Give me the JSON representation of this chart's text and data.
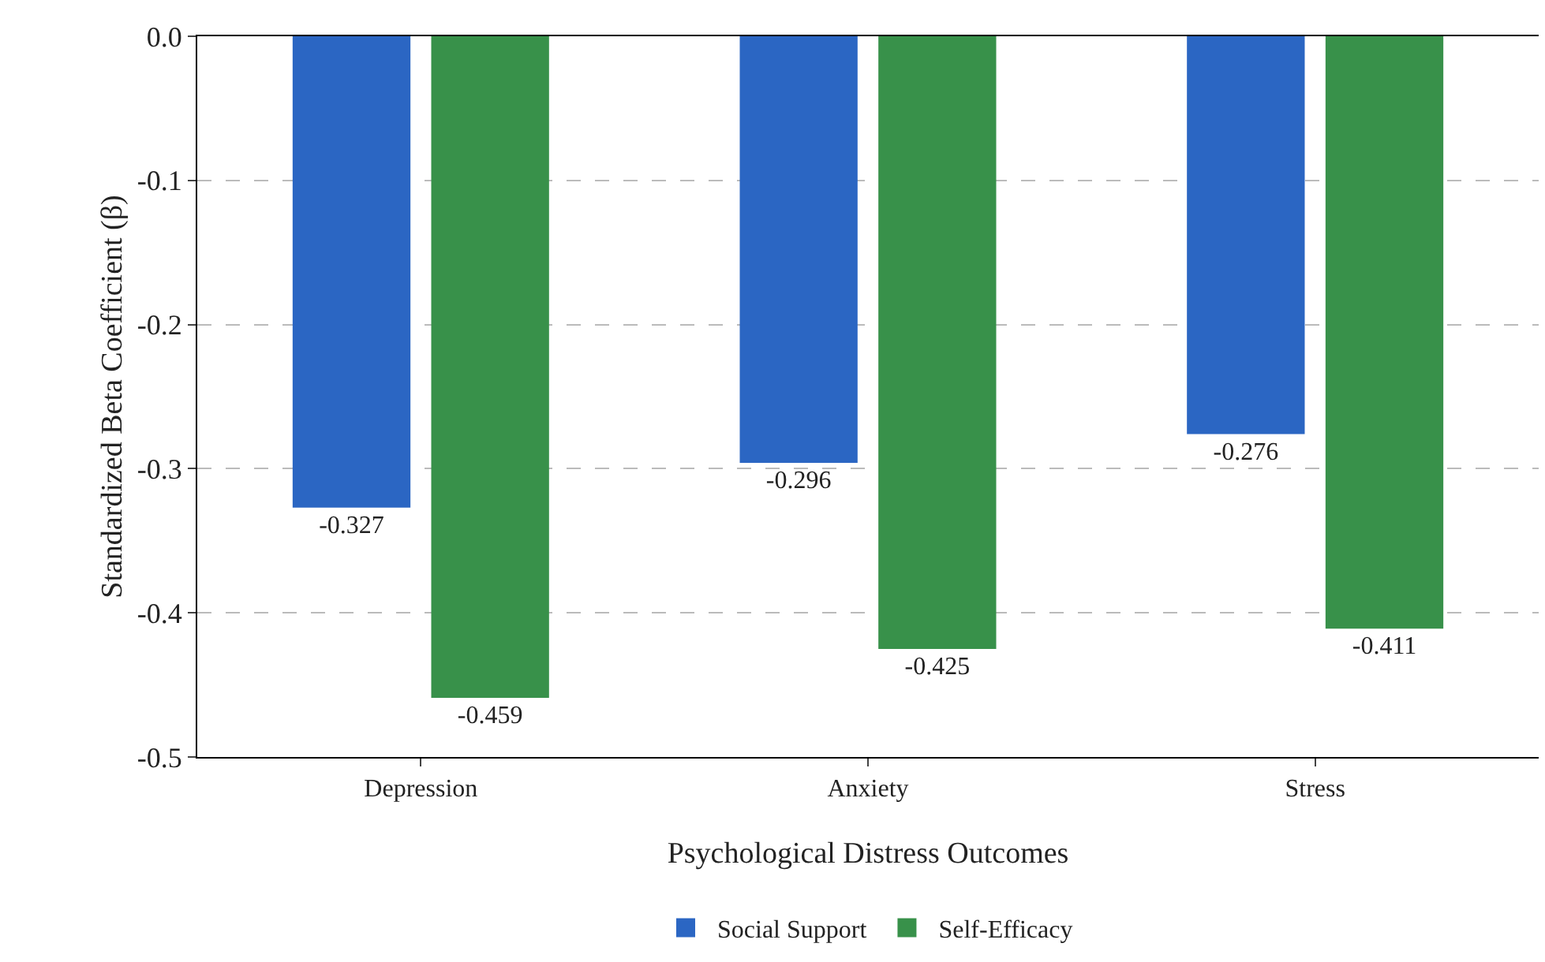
{
  "chart_data": {
    "type": "bar",
    "xlabel": "Psychological Distress Outcomes",
    "ylabel": "Standardized Beta Coefficient (β)",
    "categories": [
      "Depression",
      "Anxiety",
      "Stress"
    ],
    "series": [
      {
        "name": "Social Support",
        "color": "#2b66c3",
        "values": [
          -0.327,
          -0.296,
          -0.276
        ]
      },
      {
        "name": "Self-Efficacy",
        "color": "#38914a",
        "values": [
          -0.459,
          -0.425,
          -0.411
        ]
      }
    ],
    "ylim": [
      -0.5,
      0.0
    ],
    "yticks": [
      {
        "value": -0.5,
        "label": "-0.5"
      },
      {
        "value": -0.4,
        "label": "-0.4"
      },
      {
        "value": -0.3,
        "label": "-0.3"
      },
      {
        "value": -0.2,
        "label": "-0.2"
      },
      {
        "value": -0.1,
        "label": "-0.1"
      },
      {
        "value": 0,
        "label": "0.0"
      }
    ],
    "grid": "y",
    "legend": "bottom",
    "data_labels": true
  }
}
